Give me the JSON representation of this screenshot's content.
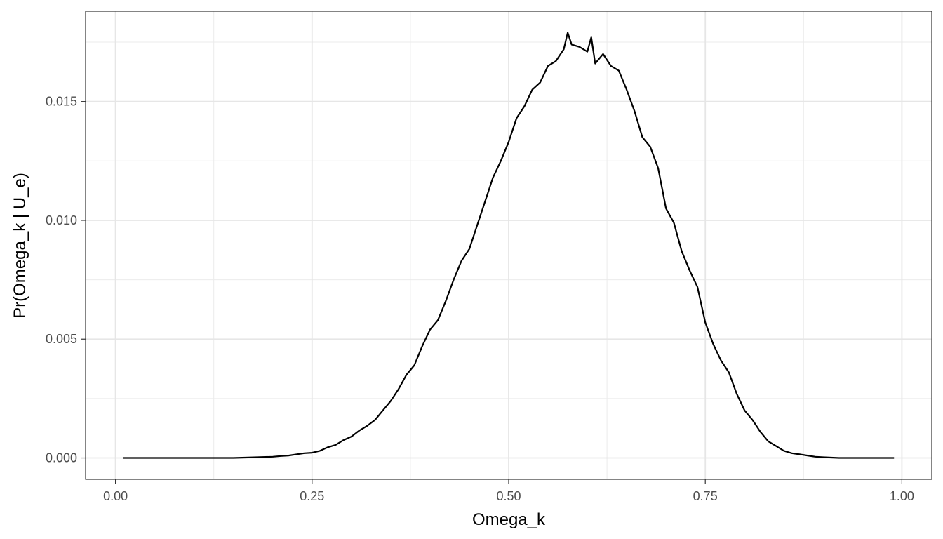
{
  "chart_data": {
    "type": "line",
    "title": "",
    "xlabel": "Omega_k",
    "ylabel": "Pr(Omega_k | U_e)",
    "xlim": [
      -0.038,
      1.038
    ],
    "ylim": [
      -0.0009,
      0.0188
    ],
    "x_ticks": [
      0.0,
      0.25,
      0.5,
      0.75,
      1.0
    ],
    "x_tick_labels": [
      "0.00",
      "0.25",
      "0.50",
      "0.75",
      "1.00"
    ],
    "y_ticks": [
      0.0,
      0.005,
      0.01,
      0.015
    ],
    "y_tick_labels": [
      "0.000",
      "0.005",
      "0.010",
      "0.015"
    ],
    "grid": true,
    "legend": "none",
    "line_color": "#000000",
    "series": [
      {
        "x": [
          0.01,
          0.05,
          0.1,
          0.15,
          0.18,
          0.2,
          0.21,
          0.22,
          0.23,
          0.24,
          0.25,
          0.26,
          0.27,
          0.28,
          0.29,
          0.3,
          0.31,
          0.32,
          0.33,
          0.34,
          0.35,
          0.36,
          0.37,
          0.38,
          0.39,
          0.4,
          0.41,
          0.42,
          0.43,
          0.44,
          0.45,
          0.46,
          0.47,
          0.48,
          0.49,
          0.5,
          0.51,
          0.52,
          0.53,
          0.54,
          0.55,
          0.56,
          0.57,
          0.575,
          0.58,
          0.59,
          0.6,
          0.605,
          0.61,
          0.62,
          0.63,
          0.64,
          0.65,
          0.66,
          0.67,
          0.68,
          0.69,
          0.7,
          0.71,
          0.72,
          0.73,
          0.74,
          0.75,
          0.76,
          0.77,
          0.78,
          0.79,
          0.8,
          0.81,
          0.82,
          0.83,
          0.84,
          0.85,
          0.86,
          0.87,
          0.88,
          0.89,
          0.9,
          0.92,
          0.95,
          0.99
        ],
        "y": [
          0.0,
          0.0,
          0.0,
          0.0,
          3e-05,
          5e-05,
          8e-05,
          0.0001,
          0.00015,
          0.0002,
          0.00022,
          0.0003,
          0.00045,
          0.00055,
          0.00075,
          0.0009,
          0.00115,
          0.00135,
          0.0016,
          0.002,
          0.0024,
          0.0029,
          0.0035,
          0.0039,
          0.0047,
          0.0054,
          0.0058,
          0.0066,
          0.0075,
          0.0083,
          0.0088,
          0.0098,
          0.0108,
          0.0118,
          0.0125,
          0.0133,
          0.0143,
          0.0148,
          0.0155,
          0.0158,
          0.0165,
          0.0167,
          0.0172,
          0.0179,
          0.0174,
          0.0173,
          0.0171,
          0.0177,
          0.0166,
          0.017,
          0.0165,
          0.0163,
          0.0155,
          0.0146,
          0.0135,
          0.0131,
          0.0122,
          0.0105,
          0.0099,
          0.0087,
          0.0079,
          0.0072,
          0.0057,
          0.0048,
          0.0041,
          0.0036,
          0.0027,
          0.002,
          0.0016,
          0.0011,
          0.0007,
          0.0005,
          0.0003,
          0.0002,
          0.00015,
          0.0001,
          5e-05,
          3e-05,
          0.0,
          0.0,
          0.0
        ]
      }
    ]
  }
}
